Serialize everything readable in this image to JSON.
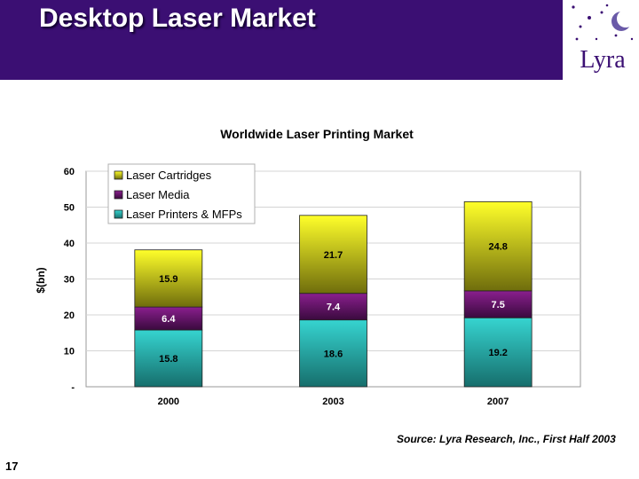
{
  "slide": {
    "title": "Desktop Laser Market",
    "logo_text": "Lyra",
    "source": "Source: Lyra Research, Inc., First Half 2003",
    "page_number": "17"
  },
  "colors": {
    "header": "#3b0f73",
    "cartridges": "#f2ef1e",
    "media": "#6b1470",
    "printers": "#2bc7c4"
  },
  "chart_data": {
    "type": "bar",
    "stacked": true,
    "title": "Worldwide Laser Printing Market",
    "ylabel": "$(bn)",
    "xlabel": "",
    "categories": [
      "2000",
      "2003",
      "2007"
    ],
    "series": [
      {
        "name": "Laser Printers & MFPs",
        "values": [
          15.8,
          18.6,
          19.2
        ],
        "labels": [
          "15.8",
          "18.6",
          "19.2"
        ]
      },
      {
        "name": "Laser Media",
        "values": [
          6.4,
          7.4,
          7.5
        ],
        "labels": [
          "6.4",
          "7.4",
          "7.5"
        ]
      },
      {
        "name": "Laser Cartridges",
        "values": [
          15.9,
          21.7,
          24.8
        ],
        "labels": [
          "15.9",
          "21.7",
          "24.8"
        ]
      }
    ],
    "legend_order": [
      "Laser Cartridges",
      "Laser Media",
      "Laser Printers & MFPs"
    ],
    "legend_position": "top-left",
    "ylim": [
      0,
      60
    ],
    "yticks": [
      0,
      10,
      20,
      30,
      40,
      50,
      60
    ],
    "ytick_labels": [
      "-",
      "10",
      "20",
      "30",
      "40",
      "50",
      "60"
    ],
    "grid": true
  }
}
